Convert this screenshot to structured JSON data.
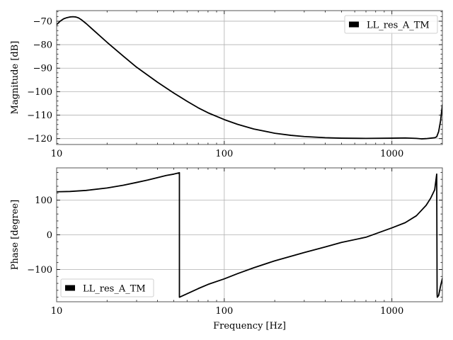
{
  "chart_data": [
    {
      "type": "line",
      "xscale": "log",
      "xlim": [
        10,
        2000
      ],
      "ylim": [
        -122.5,
        -65.5
      ],
      "xlabel": "",
      "ylabel": "Magnitude [dB]",
      "xticks": [
        10,
        100,
        1000
      ],
      "xtick_labels": [
        "10",
        "100",
        "1000"
      ],
      "yticks": [
        -70,
        -80,
        -90,
        -100,
        -110,
        -120
      ],
      "ytick_labels": [
        "−70",
        "−80",
        "−90",
        "−100",
        "−110",
        "−120"
      ],
      "grid": true,
      "legend": {
        "position": "upper-right",
        "entries": [
          "LL_res_A_TM"
        ]
      },
      "series": [
        {
          "name": "LL_res_A_TM",
          "color": "#000000",
          "x": [
            10,
            10.5,
            11,
            11.5,
            12,
            12.5,
            13,
            13.5,
            14,
            15,
            17,
            20,
            25,
            30,
            40,
            50,
            60,
            70,
            80,
            100,
            120,
            150,
            200,
            250,
            300,
            400,
            500,
            700,
            1000,
            1200,
            1400,
            1500,
            1600,
            1700,
            1800,
            1850,
            1900,
            1950,
            2000
          ],
          "y": [
            -71.5,
            -70.0,
            -69.0,
            -68.5,
            -68.2,
            -68.1,
            -68.2,
            -68.6,
            -69.3,
            -71.0,
            -74.5,
            -79.0,
            -84.9,
            -89.6,
            -96.0,
            -100.6,
            -104.1,
            -106.9,
            -109.0,
            -111.9,
            -113.9,
            -115.9,
            -117.7,
            -118.6,
            -119.1,
            -119.6,
            -119.8,
            -119.9,
            -119.8,
            -119.7,
            -119.9,
            -120.1,
            -120.0,
            -119.8,
            -119.6,
            -119.2,
            -117.0,
            -112.5,
            -105.5
          ]
        }
      ]
    },
    {
      "type": "line",
      "xscale": "log",
      "xlim": [
        10,
        2000
      ],
      "ylim": [
        -193,
        193
      ],
      "xlabel": "Frequency [Hz]",
      "ylabel": "Phase [degree]",
      "xticks": [
        10,
        100,
        1000
      ],
      "xtick_labels": [
        "10",
        "100",
        "1000"
      ],
      "yticks": [
        100,
        0,
        -100
      ],
      "ytick_labels": [
        "100",
        "0",
        "−100"
      ],
      "grid": true,
      "legend": {
        "position": "lower-left",
        "entries": [
          "LL_res_A_TM"
        ]
      },
      "series": [
        {
          "name": "LL_res_A_TM",
          "color": "#000000",
          "x": [
            10,
            12,
            15,
            20,
            25,
            30,
            35,
            40,
            45,
            50,
            54,
            54.01,
            60,
            70,
            80,
            100,
            120,
            150,
            200,
            300,
            400,
            500,
            700,
            1000,
            1200,
            1400,
            1600,
            1700,
            1800,
            1850,
            1860,
            1865,
            1900,
            1950,
            2000
          ],
          "y": [
            124,
            125,
            128,
            135,
            143,
            151,
            158,
            165,
            171,
            175,
            179,
            -180,
            -170,
            -155,
            -143,
            -127,
            -112,
            -95,
            -75,
            -51,
            -35,
            -22,
            -7,
            20,
            35,
            55,
            85,
            105,
            130,
            175,
            -170,
            -180,
            -175,
            -148,
            -125
          ]
        }
      ]
    }
  ]
}
